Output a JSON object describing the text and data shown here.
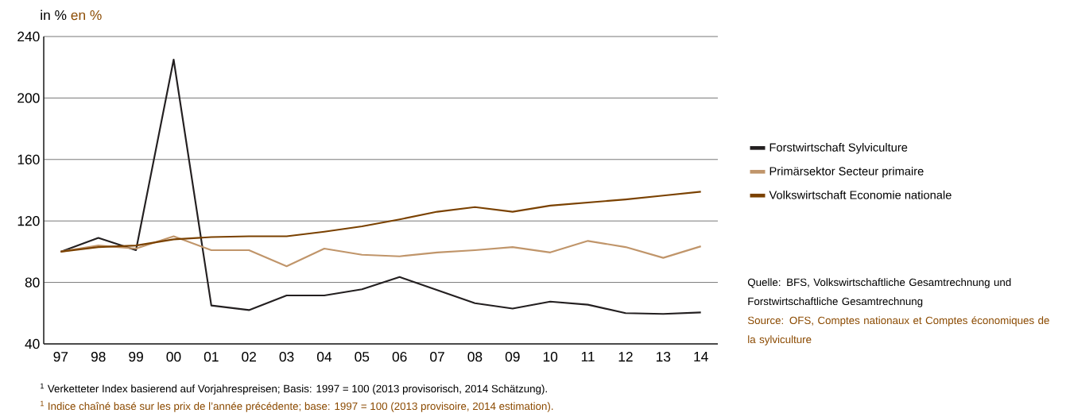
{
  "chart_data": {
    "type": "line",
    "ylabel": "in %",
    "subtitle": "en %",
    "categories": [
      "97",
      "98",
      "99",
      "00",
      "01",
      "02",
      "03",
      "04",
      "05",
      "06",
      "07",
      "08",
      "09",
      "10",
      "11",
      "12",
      "13",
      "14"
    ],
    "series": [
      {
        "name": "Forstwirtschaft  Sylviculture",
        "color": "#231f20",
        "values": [
          100,
          109,
          101,
          225,
          65,
          62,
          71.5,
          71.5,
          75.5,
          83.5,
          75,
          66.5,
          63,
          67.5,
          65.5,
          60,
          59.5,
          60.5
        ]
      },
      {
        "name": "Primärsektor  Secteur primaire",
        "color": "#c0956a",
        "values": [
          100,
          104,
          102,
          110,
          101,
          101,
          90.5,
          102,
          98,
          97,
          99.5,
          101,
          103,
          99.5,
          107,
          103,
          96,
          103.5
        ]
      },
      {
        "name": "Volkswirtschaft  Economie nationale",
        "color": "#7a4100",
        "values": [
          100,
          103,
          104,
          108,
          109.5,
          110,
          110,
          113,
          116.5,
          121,
          126,
          129,
          126,
          130,
          132,
          134,
          136.5,
          139
        ]
      }
    ],
    "ylim": [
      40,
      240
    ],
    "yticks": [
      40,
      80,
      120,
      160,
      200,
      240
    ],
    "grid": "y",
    "legend": "right",
    "line_style": "solid",
    "annotations": [
      "Quelle: BFS, Volkswirtschaftliche Gesamtrechnung und Forstwirtschaftliche Gesamtrechnung",
      "Source: OFS, Comptes nationaux et Comptes économiques de la sylviculture",
      "$^{1}$ Verketteter Index basierend auf Vorjahrespreisen; Basis: 1997 = 100 (2013 provisorisch, 2014 Schätzung).",
      "$^{1}$ Indice chaîné basé sur les prix de l’année précédente; base: 1997 = 100 (2013 provisoire, 2014 estimation)."
    ]
  }
}
